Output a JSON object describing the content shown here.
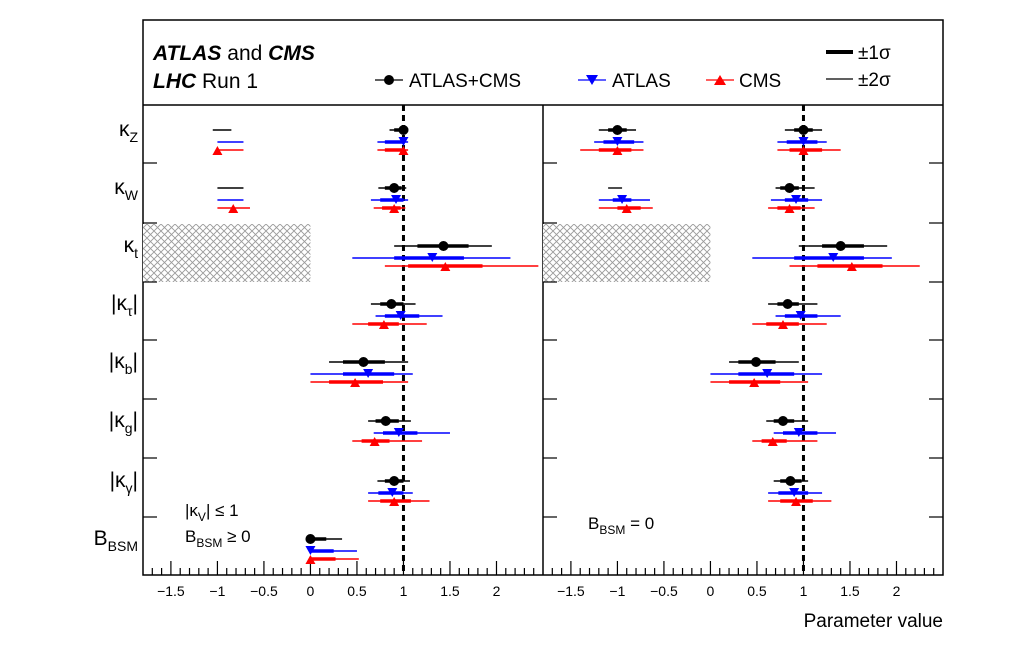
{
  "header": {
    "experiments_a": "ATLAS",
    "experiments_and": " and ",
    "experiments_b": "CMS",
    "run_a": "LHC",
    "run_b": " Run 1"
  },
  "legend": {
    "series": [
      {
        "label": "ATLAS+CMS",
        "color": "#000000",
        "marker": "circle"
      },
      {
        "label": "ATLAS",
        "color": "#0000ff",
        "marker": "triangle-down"
      },
      {
        "label": "CMS",
        "color": "#ff0000",
        "marker": "triangle-up"
      }
    ],
    "sigma1": "±1σ",
    "sigma2": "±2σ"
  },
  "xaxis": {
    "label": "Parameter value",
    "ticks": [
      "−1.5",
      "−1",
      "−0.5",
      "0",
      "0.5",
      "1",
      "1.5",
      "2"
    ]
  },
  "panels": [
    {
      "annot1": "|κ",
      "annot1_sub": "V",
      "annot1_rest": "| ≤ 1",
      "annot2": "B",
      "annot2_sub": "BSM",
      "annot2_rest": " ≥ 0"
    },
    {
      "annot1": "B",
      "annot1_sub": "BSM",
      "annot1_rest": " = 0"
    }
  ],
  "chart_data": {
    "type": "forest",
    "xlim": [
      -1.8,
      2.5
    ],
    "reference_line": 1,
    "parameters": [
      {
        "label": "κ",
        "sub": "Z",
        "abs": false
      },
      {
        "label": "κ",
        "sub": "W",
        "abs": false
      },
      {
        "label": "κ",
        "sub": "t",
        "abs": false
      },
      {
        "label": "κ",
        "sub": "τ",
        "abs": true
      },
      {
        "label": "κ",
        "sub": "b",
        "abs": true
      },
      {
        "label": "κ",
        "sub": "g",
        "abs": true
      },
      {
        "label": "κ",
        "sub": "γ",
        "abs": true
      },
      {
        "label": "B",
        "sub": "BSM",
        "abs": false
      }
    ],
    "panels": [
      {
        "name": "kv_le_1",
        "excluded_kappa_t": [
          -1.8,
          0.0
        ],
        "rows": [
          {
            "param": "κZ",
            "fits": [
              {
                "series": "ATLAS+CMS",
                "value": 1.0,
                "s1": [
                  0.9,
                  1.05
                ],
                "s2": [
                  0.85,
                  1.05
                ],
                "neg_s2": [
                  -1.05,
                  -0.85
                ]
              },
              {
                "series": "ATLAS",
                "value": 1.0,
                "s1": [
                  0.8,
                  1.0
                ],
                "s2": [
                  0.72,
                  1.05
                ],
                "neg_s2": [
                  -1.0,
                  -0.72
                ]
              },
              {
                "series": "CMS",
                "value": 1.0,
                "s1": [
                  0.8,
                  1.0
                ],
                "s2": [
                  0.72,
                  1.05
                ],
                "neg_s2": [
                  -1.0,
                  -0.72
                ],
                "neg_value": -1.0
              }
            ]
          },
          {
            "param": "κW",
            "fits": [
              {
                "series": "ATLAS+CMS",
                "value": 0.9,
                "s1": [
                  0.8,
                  0.98
                ],
                "s2": [
                  0.73,
                  1.03
                ],
                "neg_s2": [
                  -1.0,
                  -0.72
                ]
              },
              {
                "series": "ATLAS",
                "value": 0.92,
                "s1": [
                  0.75,
                  1.0
                ],
                "s2": [
                  0.65,
                  1.05
                ],
                "neg_s2": [
                  -1.0,
                  -0.72
                ]
              },
              {
                "series": "CMS",
                "value": 0.9,
                "s1": [
                  0.77,
                  0.97
                ],
                "s2": [
                  0.68,
                  1.02
                ],
                "neg_s2": [
                  -1.0,
                  -0.65
                ],
                "neg_value": -0.83
              }
            ]
          },
          {
            "param": "κt",
            "fits": [
              {
                "series": "ATLAS+CMS",
                "value": 1.43,
                "s1": [
                  1.15,
                  1.7
                ],
                "s2": [
                  0.9,
                  1.95
                ]
              },
              {
                "series": "ATLAS",
                "value": 1.31,
                "s1": [
                  0.9,
                  1.65
                ],
                "s2": [
                  0.45,
                  2.15
                ]
              },
              {
                "series": "CMS",
                "value": 1.45,
                "s1": [
                  1.05,
                  1.85
                ],
                "s2": [
                  0.8,
                  2.45
                ]
              }
            ]
          },
          {
            "param": "|κτ|",
            "fits": [
              {
                "series": "ATLAS+CMS",
                "value": 0.87,
                "s1": [
                  0.75,
                  1.0
                ],
                "s2": [
                  0.65,
                  1.13
                ]
              },
              {
                "series": "ATLAS",
                "value": 0.97,
                "s1": [
                  0.8,
                  1.17
                ],
                "s2": [
                  0.7,
                  1.42
                ]
              },
              {
                "series": "CMS",
                "value": 0.79,
                "s1": [
                  0.62,
                  0.95
                ],
                "s2": [
                  0.45,
                  1.25
                ]
              }
            ]
          },
          {
            "param": "|κb|",
            "fits": [
              {
                "series": "ATLAS+CMS",
                "value": 0.57,
                "s1": [
                  0.35,
                  0.8
                ],
                "s2": [
                  0.2,
                  1.05
                ]
              },
              {
                "series": "ATLAS",
                "value": 0.62,
                "s1": [
                  0.35,
                  0.9
                ],
                "s2": [
                  0.0,
                  1.1
                ]
              },
              {
                "series": "CMS",
                "value": 0.48,
                "s1": [
                  0.2,
                  0.78
                ],
                "s2": [
                  0.0,
                  1.05
                ]
              }
            ]
          },
          {
            "param": "|κg|",
            "fits": [
              {
                "series": "ATLAS+CMS",
                "value": 0.81,
                "s1": [
                  0.7,
                  0.95
                ],
                "s2": [
                  0.62,
                  1.08
                ]
              },
              {
                "series": "ATLAS",
                "value": 0.95,
                "s1": [
                  0.78,
                  1.15
                ],
                "s2": [
                  0.68,
                  1.5
                ]
              },
              {
                "series": "CMS",
                "value": 0.69,
                "s1": [
                  0.55,
                  0.85
                ],
                "s2": [
                  0.45,
                  1.2
                ]
              }
            ]
          },
          {
            "param": "|κγ|",
            "fits": [
              {
                "series": "ATLAS+CMS",
                "value": 0.9,
                "s1": [
                  0.8,
                  1.0
                ],
                "s2": [
                  0.72,
                  1.07
                ]
              },
              {
                "series": "ATLAS",
                "value": 0.88,
                "s1": [
                  0.73,
                  1.0
                ],
                "s2": [
                  0.62,
                  1.1
                ]
              },
              {
                "series": "CMS",
                "value": 0.9,
                "s1": [
                  0.75,
                  1.08
                ],
                "s2": [
                  0.62,
                  1.28
                ]
              }
            ]
          },
          {
            "param": "BBSM",
            "fits": [
              {
                "series": "ATLAS+CMS",
                "value": 0.0,
                "s1": [
                  0.0,
                  0.17
                ],
                "s2": [
                  0.0,
                  0.34
                ]
              },
              {
                "series": "ATLAS",
                "value": 0.0,
                "s1": [
                  0.0,
                  0.25
                ],
                "s2": [
                  0.0,
                  0.5
                ]
              },
              {
                "series": "CMS",
                "value": 0.0,
                "s1": [
                  0.0,
                  0.27
                ],
                "s2": [
                  0.0,
                  0.52
                ]
              }
            ]
          }
        ]
      },
      {
        "name": "bbsm_eq_0",
        "excluded_kappa_t": [
          -1.8,
          0.0
        ],
        "rows": [
          {
            "param": "κZ",
            "fits": [
              {
                "series": "ATLAS+CMS",
                "value": 1.0,
                "s1": [
                  0.9,
                  1.1
                ],
                "s2": [
                  0.8,
                  1.2
                ],
                "neg_value": -1.0,
                "neg_s1": [
                  -1.1,
                  -0.9
                ],
                "neg_s2": [
                  -1.2,
                  -0.8
                ]
              },
              {
                "series": "ATLAS",
                "value": 1.0,
                "s1": [
                  0.82,
                  1.15
                ],
                "s2": [
                  0.72,
                  1.25
                ],
                "neg_value": -1.0,
                "neg_s1": [
                  -1.15,
                  -0.82
                ],
                "neg_s2": [
                  -1.25,
                  -0.72
                ]
              },
              {
                "series": "CMS",
                "value": 1.0,
                "s1": [
                  0.85,
                  1.2
                ],
                "s2": [
                  0.72,
                  1.4
                ],
                "neg_value": -1.0,
                "neg_s1": [
                  -1.2,
                  -0.85
                ],
                "neg_s2": [
                  -1.4,
                  -0.72
                ]
              }
            ]
          },
          {
            "param": "κW",
            "fits": [
              {
                "series": "ATLAS+CMS",
                "value": 0.85,
                "s1": [
                  0.75,
                  0.95
                ],
                "s2": [
                  0.7,
                  1.12
                ],
                "neg_s2": [
                  -1.1,
                  -0.95
                ]
              },
              {
                "series": "ATLAS",
                "value": 0.92,
                "s1": [
                  0.8,
                  1.05
                ],
                "s2": [
                  0.65,
                  1.2
                ],
                "neg_value": -0.95,
                "neg_s1": [
                  -1.05,
                  -0.85
                ],
                "neg_s2": [
                  -1.2,
                  -0.65
                ]
              },
              {
                "series": "CMS",
                "value": 0.85,
                "s1": [
                  0.72,
                  0.97
                ],
                "s2": [
                  0.62,
                  1.12
                ],
                "neg_value": -0.9,
                "neg_s1": [
                  -1.0,
                  -0.75
                ],
                "neg_s2": [
                  -1.2,
                  -0.62
                ]
              }
            ]
          },
          {
            "param": "κt",
            "fits": [
              {
                "series": "ATLAS+CMS",
                "value": 1.4,
                "s1": [
                  1.2,
                  1.65
                ],
                "s2": [
                  0.95,
                  1.9
                ]
              },
              {
                "series": "ATLAS",
                "value": 1.32,
                "s1": [
                  0.9,
                  1.65
                ],
                "s2": [
                  0.45,
                  1.95
                ]
              },
              {
                "series": "CMS",
                "value": 1.52,
                "s1": [
                  1.15,
                  1.85
                ],
                "s2": [
                  0.85,
                  2.25
                ]
              }
            ]
          },
          {
            "param": "|κτ|",
            "fits": [
              {
                "series": "ATLAS+CMS",
                "value": 0.83,
                "s1": [
                  0.72,
                  0.95
                ],
                "s2": [
                  0.62,
                  1.15
                ]
              },
              {
                "series": "ATLAS",
                "value": 0.97,
                "s1": [
                  0.8,
                  1.15
                ],
                "s2": [
                  0.7,
                  1.4
                ]
              },
              {
                "series": "CMS",
                "value": 0.78,
                "s1": [
                  0.6,
                  0.95
                ],
                "s2": [
                  0.45,
                  1.25
                ]
              }
            ]
          },
          {
            "param": "|κb|",
            "fits": [
              {
                "series": "ATLAS+CMS",
                "value": 0.49,
                "s1": [
                  0.3,
                  0.7
                ],
                "s2": [
                  0.2,
                  0.95
                ]
              },
              {
                "series": "ATLAS",
                "value": 0.61,
                "s1": [
                  0.3,
                  0.9
                ],
                "s2": [
                  0.0,
                  1.2
                ]
              },
              {
                "series": "CMS",
                "value": 0.47,
                "s1": [
                  0.2,
                  0.75
                ],
                "s2": [
                  0.0,
                  1.05
                ]
              }
            ]
          },
          {
            "param": "|κg|",
            "fits": [
              {
                "series": "ATLAS+CMS",
                "value": 0.78,
                "s1": [
                  0.68,
                  0.9
                ],
                "s2": [
                  0.6,
                  1.05
                ]
              },
              {
                "series": "ATLAS",
                "value": 0.95,
                "s1": [
                  0.78,
                  1.15
                ],
                "s2": [
                  0.68,
                  1.35
                ]
              },
              {
                "series": "CMS",
                "value": 0.67,
                "s1": [
                  0.55,
                  0.82
                ],
                "s2": [
                  0.45,
                  1.15
                ]
              }
            ]
          },
          {
            "param": "|κγ|",
            "fits": [
              {
                "series": "ATLAS+CMS",
                "value": 0.86,
                "s1": [
                  0.75,
                  0.98
                ],
                "s2": [
                  0.68,
                  1.05
                ]
              },
              {
                "series": "ATLAS",
                "value": 0.9,
                "s1": [
                  0.73,
                  1.05
                ],
                "s2": [
                  0.62,
                  1.2
                ]
              },
              {
                "series": "CMS",
                "value": 0.92,
                "s1": [
                  0.75,
                  1.1
                ],
                "s2": [
                  0.62,
                  1.3
                ]
              }
            ]
          }
        ]
      }
    ]
  }
}
